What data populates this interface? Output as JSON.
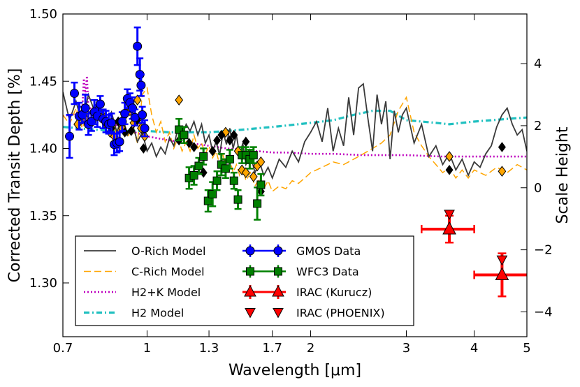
{
  "chart_data": {
    "type": "line",
    "xlabel": "Wavelength [μm]",
    "ylabel": "Corrected Transit Depth [%]",
    "y2label": "Scale Height",
    "x_scale": "log",
    "xlim": [
      0.7,
      5.0
    ],
    "ylim": [
      1.26,
      1.5
    ],
    "y2lim": [
      -4.8,
      5.6
    ],
    "x_ticks": [
      0.7,
      1,
      1.3,
      1.7,
      2,
      3,
      4,
      5
    ],
    "x_tick_labels": [
      "0.7",
      "1",
      "1.3",
      "1.7",
      "2",
      "3",
      "4",
      "5"
    ],
    "y_ticks": [
      1.3,
      1.35,
      1.4,
      1.45,
      1.5
    ],
    "y_tick_labels": [
      "1.30",
      "1.35",
      "1.40",
      "1.45",
      "1.50"
    ],
    "y2_ticks": [
      -4,
      -2,
      0,
      2,
      4
    ],
    "y2_tick_labels": [
      "−4",
      "−2",
      "0",
      "2",
      "4"
    ],
    "legend_position": "lower-left",
    "legend": [
      {
        "label": "O-Rich Model",
        "series": "o_rich"
      },
      {
        "label": "C-Rich Model",
        "series": "c_rich"
      },
      {
        "label": "H2+K Model",
        "series": "h2k"
      },
      {
        "label": "H2 Model",
        "series": "h2"
      },
      {
        "label": "GMOS Data",
        "series": "gmos"
      },
      {
        "label": "WFC3 Data",
        "series": "wfc3"
      },
      {
        "label": "IRAC (Kurucz)",
        "series": "irac_kurucz"
      },
      {
        "label": "IRAC (PHOENIX)",
        "series": "irac_phoenix"
      }
    ],
    "colors": {
      "o_rich": "#3a3a3a",
      "c_rich": "#ffa500",
      "h2k": "#bf00bf",
      "h2": "#20c0c0",
      "gmos": "#0000ff",
      "wfc3": "#008000",
      "irac": "#ff0000",
      "diamond_orange": "#ffa500",
      "diamond_black": "#000000"
    },
    "series": [
      {
        "name": "O-Rich Model",
        "key": "o_rich",
        "style": "solid",
        "x": [
          0.7,
          0.72,
          0.74,
          0.76,
          0.78,
          0.8,
          0.82,
          0.84,
          0.86,
          0.88,
          0.9,
          0.92,
          0.94,
          0.96,
          0.98,
          1.0,
          1.02,
          1.04,
          1.06,
          1.08,
          1.1,
          1.12,
          1.14,
          1.16,
          1.18,
          1.2,
          1.22,
          1.24,
          1.26,
          1.28,
          1.3,
          1.32,
          1.34,
          1.36,
          1.38,
          1.4,
          1.42,
          1.44,
          1.46,
          1.48,
          1.5,
          1.52,
          1.55,
          1.58,
          1.61,
          1.64,
          1.67,
          1.7,
          1.75,
          1.8,
          1.85,
          1.9,
          1.95,
          2.0,
          2.05,
          2.1,
          2.15,
          2.2,
          2.25,
          2.3,
          2.35,
          2.4,
          2.45,
          2.5,
          2.55,
          2.6,
          2.65,
          2.7,
          2.75,
          2.8,
          2.85,
          2.9,
          2.95,
          3.0,
          3.1,
          3.2,
          3.3,
          3.4,
          3.5,
          3.6,
          3.7,
          3.8,
          3.9,
          4.0,
          4.1,
          4.2,
          4.3,
          4.4,
          4.5,
          4.6,
          4.7,
          4.8,
          4.9,
          5.0
        ],
        "y": [
          1.442,
          1.421,
          1.435,
          1.418,
          1.44,
          1.428,
          1.431,
          1.419,
          1.427,
          1.412,
          1.425,
          1.41,
          1.418,
          1.405,
          1.412,
          1.398,
          1.404,
          1.394,
          1.401,
          1.396,
          1.408,
          1.402,
          1.415,
          1.409,
          1.418,
          1.413,
          1.42,
          1.41,
          1.418,
          1.404,
          1.41,
          1.398,
          1.405,
          1.395,
          1.412,
          1.403,
          1.415,
          1.4,
          1.41,
          1.395,
          1.404,
          1.388,
          1.395,
          1.382,
          1.39,
          1.38,
          1.386,
          1.378,
          1.392,
          1.386,
          1.398,
          1.39,
          1.405,
          1.412,
          1.42,
          1.405,
          1.43,
          1.398,
          1.415,
          1.402,
          1.438,
          1.41,
          1.445,
          1.448,
          1.422,
          1.398,
          1.44,
          1.418,
          1.435,
          1.392,
          1.428,
          1.412,
          1.425,
          1.43,
          1.404,
          1.418,
          1.394,
          1.402,
          1.388,
          1.396,
          1.384,
          1.392,
          1.38,
          1.39,
          1.386,
          1.396,
          1.402,
          1.416,
          1.425,
          1.43,
          1.418,
          1.41,
          1.414,
          1.398
        ]
      },
      {
        "name": "C-Rich Model",
        "key": "c_rich",
        "style": "dashed",
        "x": [
          0.7,
          0.72,
          0.74,
          0.76,
          0.78,
          0.8,
          0.82,
          0.84,
          0.86,
          0.88,
          0.9,
          0.92,
          0.94,
          0.96,
          0.98,
          1.0,
          1.02,
          1.04,
          1.06,
          1.08,
          1.1,
          1.12,
          1.14,
          1.16,
          1.18,
          1.2,
          1.22,
          1.24,
          1.26,
          1.28,
          1.3,
          1.32,
          1.34,
          1.36,
          1.38,
          1.4,
          1.42,
          1.44,
          1.46,
          1.48,
          1.5,
          1.52,
          1.55,
          1.58,
          1.61,
          1.64,
          1.67,
          1.7,
          1.75,
          1.8,
          1.85,
          1.9,
          1.95,
          2.0,
          2.1,
          2.2,
          2.3,
          2.4,
          2.5,
          2.6,
          2.7,
          2.8,
          2.9,
          3.0,
          3.1,
          3.2,
          3.3,
          3.4,
          3.5,
          3.6,
          3.7,
          3.8,
          3.9,
          4.0,
          4.2,
          4.4,
          4.6,
          4.8,
          5.0
        ],
        "y": [
          1.425,
          1.418,
          1.43,
          1.415,
          1.428,
          1.42,
          1.425,
          1.414,
          1.422,
          1.41,
          1.42,
          1.408,
          1.416,
          1.404,
          1.44,
          1.445,
          1.425,
          1.412,
          1.42,
          1.405,
          1.412,
          1.4,
          1.408,
          1.398,
          1.405,
          1.398,
          1.41,
          1.4,
          1.404,
          1.396,
          1.402,
          1.393,
          1.398,
          1.388,
          1.395,
          1.385,
          1.392,
          1.382,
          1.388,
          1.38,
          1.386,
          1.376,
          1.382,
          1.372,
          1.378,
          1.37,
          1.376,
          1.368,
          1.372,
          1.37,
          1.376,
          1.374,
          1.378,
          1.382,
          1.386,
          1.39,
          1.388,
          1.392,
          1.396,
          1.4,
          1.404,
          1.41,
          1.428,
          1.438,
          1.412,
          1.402,
          1.394,
          1.388,
          1.382,
          1.386,
          1.378,
          1.384,
          1.378,
          1.384,
          1.38,
          1.386,
          1.382,
          1.388,
          1.384
        ]
      },
      {
        "name": "H2+K Model",
        "key": "h2k",
        "style": "dotted",
        "x": [
          0.7,
          0.74,
          0.76,
          0.765,
          0.77,
          0.775,
          0.78,
          0.8,
          0.85,
          0.9,
          0.95,
          1.0,
          1.1,
          1.2,
          1.3,
          1.4,
          1.5,
          1.6,
          1.7,
          1.8,
          2.0,
          2.2,
          2.5,
          3.0,
          3.5,
          4.0,
          4.5,
          5.0
        ],
        "y": [
          1.424,
          1.426,
          1.43,
          1.452,
          1.44,
          1.454,
          1.432,
          1.426,
          1.42,
          1.415,
          1.412,
          1.409,
          1.406,
          1.404,
          1.402,
          1.4,
          1.399,
          1.398,
          1.397,
          1.397,
          1.396,
          1.396,
          1.395,
          1.395,
          1.394,
          1.394,
          1.394,
          1.394
        ]
      },
      {
        "name": "H2 Model",
        "key": "h2",
        "style": "dashdot",
        "x": [
          0.7,
          0.8,
          0.9,
          1.0,
          1.1,
          1.2,
          1.3,
          1.4,
          1.5,
          1.6,
          1.7,
          1.8,
          2.0,
          2.2,
          2.4,
          2.6,
          2.8,
          3.0,
          3.2,
          3.4,
          3.6,
          3.8,
          4.0,
          4.3,
          4.6,
          5.0
        ],
        "y": [
          1.416,
          1.414,
          1.413,
          1.413,
          1.412,
          1.412,
          1.412,
          1.413,
          1.414,
          1.415,
          1.416,
          1.417,
          1.419,
          1.421,
          1.425,
          1.428,
          1.428,
          1.421,
          1.42,
          1.419,
          1.418,
          1.419,
          1.42,
          1.421,
          1.422,
          1.423
        ]
      }
    ],
    "gmos": {
      "x": [
        0.72,
        0.735,
        0.75,
        0.76,
        0.77,
        0.78,
        0.79,
        0.8,
        0.81,
        0.82,
        0.83,
        0.84,
        0.85,
        0.86,
        0.87,
        0.88,
        0.89,
        0.9,
        0.91,
        0.92,
        0.93,
        0.94,
        0.95,
        0.96,
        0.97,
        0.975,
        0.98,
        0.99
      ],
      "y": [
        1.409,
        1.441,
        1.424,
        1.425,
        1.43,
        1.418,
        1.42,
        1.427,
        1.424,
        1.433,
        1.422,
        1.42,
        1.418,
        1.419,
        1.403,
        1.404,
        1.405,
        1.42,
        1.426,
        1.437,
        1.434,
        1.43,
        1.423,
        1.476,
        1.455,
        1.447,
        1.425,
        1.415
      ],
      "err": [
        0.016,
        0.008,
        0.01,
        0.006,
        0.01,
        0.008,
        0.007,
        0.009,
        0.008,
        0.006,
        0.007,
        0.008,
        0.007,
        0.007,
        0.008,
        0.007,
        0.007,
        0.007,
        0.008,
        0.007,
        0.007,
        0.008,
        0.006,
        0.014,
        0.012,
        0.008,
        0.006,
        0.006
      ]
    },
    "wfc3": {
      "x": [
        1.145,
        1.17,
        1.195,
        1.22,
        1.245,
        1.27,
        1.295,
        1.32,
        1.345,
        1.37,
        1.395,
        1.42,
        1.445,
        1.47,
        1.495,
        1.52,
        1.545,
        1.57,
        1.595,
        1.62
      ],
      "y": [
        1.414,
        1.41,
        1.378,
        1.38,
        1.387,
        1.394,
        1.361,
        1.366,
        1.376,
        1.388,
        1.385,
        1.392,
        1.376,
        1.362,
        1.395,
        1.395,
        1.392,
        1.395,
        1.359,
        1.373
      ],
      "err": [
        0.008,
        0.006,
        0.008,
        0.007,
        0.006,
        0.006,
        0.008,
        0.009,
        0.007,
        0.008,
        0.007,
        0.007,
        0.006,
        0.007,
        0.006,
        0.006,
        0.007,
        0.006,
        0.012,
        0.008
      ]
    },
    "irac_kurucz": {
      "x": [
        3.6,
        4.5
      ],
      "y": [
        1.34,
        1.306
      ],
      "xerr_low": [
        0.4,
        0.5
      ],
      "xerr_high": [
        0.4,
        0.55
      ],
      "yerr": [
        0.01,
        0.016
      ]
    },
    "irac_phoenix": {
      "x": [
        3.6,
        4.5
      ],
      "y": [
        1.351,
        1.317
      ]
    },
    "diamonds_orange": {
      "x": [
        0.745,
        0.77,
        0.79,
        0.8,
        0.815,
        0.83,
        0.84,
        0.855,
        0.87,
        0.885,
        0.9,
        0.915,
        0.93,
        0.945,
        0.96,
        0.975,
        0.99,
        1.145,
        1.395,
        1.47,
        1.495,
        1.52,
        1.545,
        1.57,
        1.595,
        1.62,
        3.6,
        4.5
      ],
      "y": [
        1.418,
        1.422,
        1.419,
        1.428,
        1.432,
        1.424,
        1.418,
        1.412,
        1.409,
        1.404,
        1.415,
        1.426,
        1.428,
        1.419,
        1.436,
        1.415,
        1.409,
        1.436,
        1.412,
        1.398,
        1.384,
        1.382,
        1.396,
        1.379,
        1.387,
        1.39,
        1.394,
        1.383
      ]
    },
    "diamonds_black": {
      "x": [
        0.76,
        0.785,
        0.81,
        0.835,
        0.86,
        0.885,
        0.91,
        0.935,
        0.96,
        0.985,
        1.145,
        1.17,
        1.195,
        1.22,
        1.27,
        1.32,
        1.345,
        1.37,
        1.42,
        1.445,
        1.52,
        1.62,
        3.6,
        4.5
      ],
      "y": [
        1.425,
        1.419,
        1.428,
        1.421,
        1.415,
        1.42,
        1.412,
        1.413,
        1.421,
        1.4,
        1.406,
        1.41,
        1.404,
        1.401,
        1.382,
        1.398,
        1.406,
        1.41,
        1.406,
        1.41,
        1.405,
        1.368,
        1.384,
        1.401
      ]
    }
  }
}
